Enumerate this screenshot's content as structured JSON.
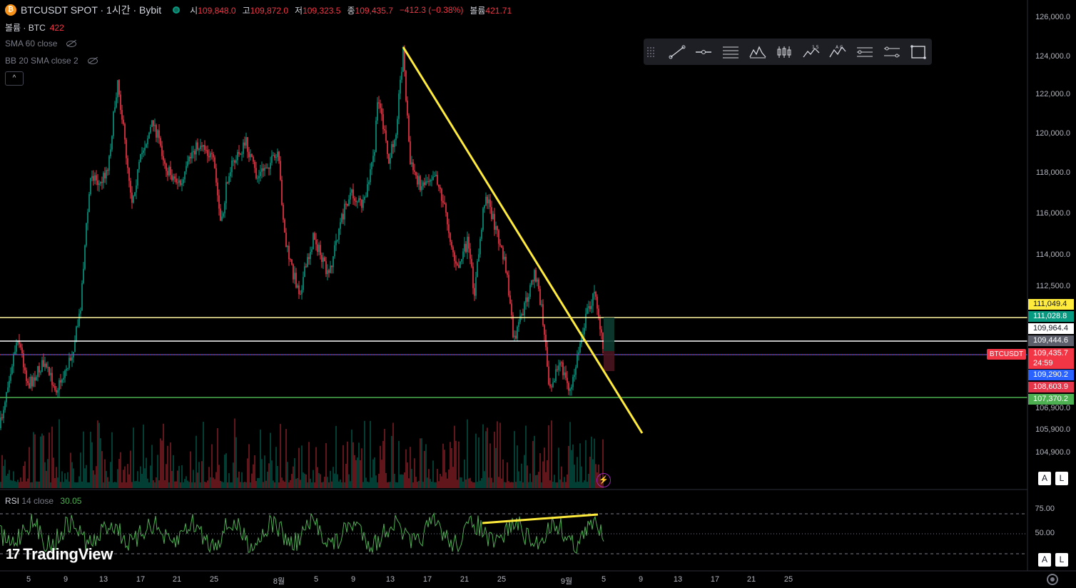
{
  "header": {
    "symbol_icon": "bitcoin-icon",
    "title": "BTCUSDT SPOT · 1시간 · Bybit",
    "ohlc": [
      {
        "key": "시",
        "value": "109,848.0"
      },
      {
        "key": "고",
        "value": "109,872.0"
      },
      {
        "key": "저",
        "value": "109,323.5"
      },
      {
        "key": "종",
        "value": "109,435.7"
      }
    ],
    "change": "−412.3 (−0.38%)",
    "volume_key": "볼륨",
    "volume_value": "421.71"
  },
  "indicators": {
    "volume_label": "볼륨 · BTC",
    "volume_value": "422",
    "sma_label": "SMA 60 close",
    "bb_label": "BB 20 SMA close 2",
    "collapse_icon": "chevron-up-icon",
    "collapse_glyph": "^"
  },
  "toolbar": {
    "tools": [
      "trend-line-icon",
      "horizontal-ray-icon",
      "fib-retracement-icon",
      "pattern-icon",
      "long-position-icon",
      "elliott-wave-icon",
      "abcd-pattern-icon",
      "date-range-icon",
      "price-range-icon",
      "rectangle-icon"
    ]
  },
  "price_axis": {
    "ticks": [
      "126,000.0",
      "124,000.0",
      "122,000.0",
      "120,000.0",
      "118,000.0",
      "116,000.0",
      "114,000.0",
      "112,500.0",
      "106,900.0",
      "105,900.0",
      "104,900.0"
    ]
  },
  "price_tags": [
    {
      "value": "111,049.4",
      "style": "yellow"
    },
    {
      "value": "111,028.8",
      "style": "teal"
    },
    {
      "value": "109,964.4",
      "style": "white"
    },
    {
      "value": "109,444.6",
      "style": "gray"
    },
    {
      "value": "109,435.7",
      "style": "red"
    },
    {
      "value": "109,290.2",
      "style": "blue"
    },
    {
      "value": "108,603.9",
      "style": "crimson"
    },
    {
      "value": "107,370.2",
      "style": "green"
    }
  ],
  "symbol_tag": "BTCUSDT",
  "countdown": "24:59",
  "rsi": {
    "label": "RSI",
    "params": "14 close",
    "value": "30.05",
    "ticks": [
      "75.00",
      "50.00"
    ]
  },
  "time_axis": {
    "ticks": [
      "5",
      "9",
      "13",
      "17",
      "21",
      "25",
      "8월",
      "5",
      "9",
      "13",
      "17",
      "21",
      "25",
      "9월",
      "5",
      "9",
      "13",
      "17",
      "21",
      "25"
    ]
  },
  "buttons": {
    "auto": "A",
    "log": "L"
  },
  "logo": {
    "mark": "17",
    "text": "TradingView"
  },
  "lightning_glyph": "⚡",
  "colors": {
    "up": "#089981",
    "down": "#f23645",
    "trendline": "#ffeb3b",
    "rsi": "#4caf50",
    "level_yellow": "#fff59d",
    "level_white": "#ffffff",
    "level_blue": "#2962ff",
    "level_green": "#4caf50"
  }
}
